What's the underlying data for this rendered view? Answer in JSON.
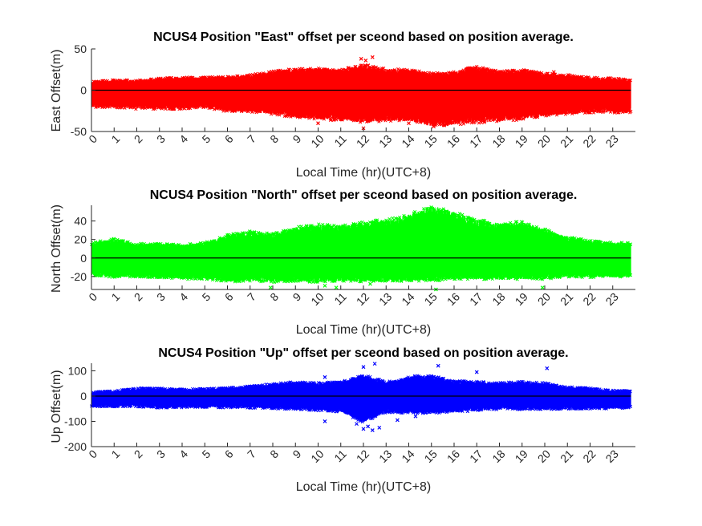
{
  "figure": {
    "background": "#ffffff",
    "axis_color": "#262626",
    "zero_line_color": "#000000"
  },
  "chart_data": [
    {
      "type": "scatter",
      "title": "NCUS4 Position \"East\" offset per sceond based on position average.",
      "xlabel": "Local Time (hr)(UTC+8)",
      "ylabel": "East Offset(m)",
      "xlim": [
        0,
        24
      ],
      "ylim": [
        -50,
        50
      ],
      "xticks": [
        "0",
        "1",
        "2",
        "3",
        "4",
        "5",
        "6",
        "7",
        "8",
        "9",
        "10",
        "11",
        "12",
        "13",
        "14",
        "15",
        "16",
        "17",
        "18",
        "19",
        "20",
        "21",
        "22",
        "23"
      ],
      "yticks": [
        -50,
        0,
        50
      ],
      "marker": "x",
      "color": "#ff0000",
      "zero_line": true,
      "series": [
        {
          "x": [
            0,
            1,
            2,
            3,
            4,
            5,
            6,
            7,
            8,
            9,
            10,
            11,
            12,
            13,
            14,
            15,
            16,
            17,
            18,
            19,
            20,
            21,
            22,
            23,
            23.8
          ],
          "upper": [
            10,
            12,
            12,
            14,
            15,
            15,
            16,
            18,
            22,
            25,
            26,
            24,
            30,
            25,
            24,
            20,
            22,
            28,
            22,
            24,
            20,
            18,
            15,
            14,
            12
          ],
          "lower": [
            -20,
            -20,
            -22,
            -22,
            -22,
            -20,
            -25,
            -25,
            -28,
            -32,
            -34,
            -35,
            -38,
            -36,
            -36,
            -42,
            -40,
            -38,
            -36,
            -34,
            -30,
            -28,
            -26,
            -26,
            -26
          ]
        }
      ],
      "outliers": [
        {
          "x": 11.9,
          "y": 38
        },
        {
          "x": 12.1,
          "y": 36
        },
        {
          "x": 12.4,
          "y": 40
        },
        {
          "x": 12.2,
          "y": 30
        },
        {
          "x": 10.0,
          "y": -40
        },
        {
          "x": 15.1,
          "y": -44
        },
        {
          "x": 12.0,
          "y": -46
        },
        {
          "x": 20.4,
          "y": 22
        },
        {
          "x": 14.0,
          "y": -40
        }
      ]
    },
    {
      "type": "scatter",
      "title": "NCUS4 Position \"North\" offset per sceond based on position average.",
      "xlabel": "Local Time (hr)(UTC+8)",
      "ylabel": "North Offset(m)",
      "xlim": [
        0,
        24
      ],
      "ylim": [
        -34,
        57
      ],
      "xticks": [
        "0",
        "1",
        "2",
        "3",
        "4",
        "5",
        "6",
        "7",
        "8",
        "9",
        "10",
        "11",
        "12",
        "13",
        "14",
        "15",
        "16",
        "17",
        "18",
        "19",
        "20",
        "21",
        "22",
        "23"
      ],
      "yticks": [
        -20,
        0,
        20,
        40
      ],
      "marker": "x",
      "color": "#00ff00",
      "zero_line": true,
      "series": [
        {
          "x": [
            0,
            1,
            2,
            3,
            4,
            5,
            6,
            7,
            8,
            9,
            10,
            11,
            12,
            13,
            14,
            15,
            16,
            17,
            18,
            19,
            20,
            21,
            22,
            23,
            23.8
          ],
          "upper": [
            16,
            20,
            15,
            15,
            14,
            16,
            24,
            28,
            25,
            32,
            35,
            34,
            38,
            40,
            45,
            55,
            48,
            40,
            36,
            38,
            30,
            22,
            18,
            16,
            16
          ],
          "lower": [
            -18,
            -20,
            -20,
            -20,
            -22,
            -22,
            -25,
            -24,
            -25,
            -25,
            -25,
            -24,
            -25,
            -24,
            -24,
            -24,
            -22,
            -22,
            -22,
            -22,
            -22,
            -20,
            -20,
            -20,
            -20
          ]
        }
      ],
      "outliers": [
        {
          "x": 7.9,
          "y": -32
        },
        {
          "x": 10.3,
          "y": -30
        },
        {
          "x": 10.8,
          "y": -32
        },
        {
          "x": 12.3,
          "y": -28
        },
        {
          "x": 19.9,
          "y": -32
        },
        {
          "x": 15.2,
          "y": -34
        },
        {
          "x": 1.0,
          "y": 20
        },
        {
          "x": 5.3,
          "y": 16
        }
      ]
    },
    {
      "type": "scatter",
      "title": "NCUS4 Position \"Up\" offset per sceond based on position average.",
      "xlabel": "Local Time (hr)(UTC+8)",
      "ylabel": "Up Offset(m)",
      "xlim": [
        0,
        24
      ],
      "ylim": [
        -200,
        130
      ],
      "xticks": [
        "0",
        "1",
        "2",
        "3",
        "4",
        "5",
        "6",
        "7",
        "8",
        "9",
        "10",
        "11",
        "12",
        "13",
        "14",
        "15",
        "16",
        "17",
        "18",
        "19",
        "20",
        "21",
        "22",
        "23"
      ],
      "yticks": [
        -200,
        -100,
        0,
        100
      ],
      "marker": "x",
      "color": "#0000ff",
      "zero_line": true,
      "series": [
        {
          "x": [
            0,
            1,
            2,
            3,
            4,
            5,
            6,
            7,
            8,
            9,
            10,
            11,
            12,
            13,
            14,
            15,
            16,
            17,
            18,
            19,
            20,
            21,
            22,
            23,
            23.8
          ],
          "upper": [
            15,
            20,
            30,
            30,
            28,
            28,
            32,
            38,
            48,
            55,
            50,
            55,
            80,
            55,
            75,
            80,
            58,
            55,
            52,
            55,
            50,
            35,
            30,
            22,
            20
          ],
          "lower": [
            -40,
            -40,
            -40,
            -45,
            -45,
            -42,
            -45,
            -45,
            -48,
            -50,
            -55,
            -60,
            -100,
            -62,
            -65,
            -65,
            -62,
            -55,
            -50,
            -50,
            -50,
            -50,
            -48,
            -48,
            -45
          ]
        }
      ],
      "outliers": [
        {
          "x": 12.0,
          "y": -130
        },
        {
          "x": 12.2,
          "y": -120
        },
        {
          "x": 12.4,
          "y": -135
        },
        {
          "x": 11.7,
          "y": -110
        },
        {
          "x": 12.7,
          "y": -125
        },
        {
          "x": 13.5,
          "y": -95
        },
        {
          "x": 14.3,
          "y": -80
        },
        {
          "x": 10.3,
          "y": -100
        },
        {
          "x": 20.1,
          "y": 110
        },
        {
          "x": 17.0,
          "y": 95
        },
        {
          "x": 15.3,
          "y": 120
        },
        {
          "x": 12.5,
          "y": 128
        },
        {
          "x": 12.0,
          "y": 115
        },
        {
          "x": 10.3,
          "y": 75
        }
      ]
    }
  ]
}
